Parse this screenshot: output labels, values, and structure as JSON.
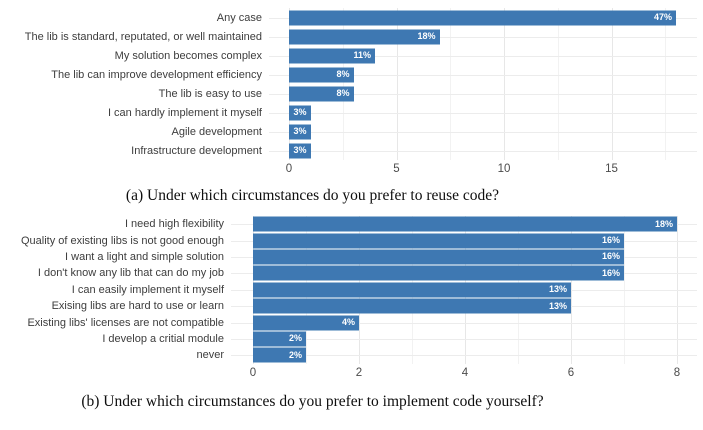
{
  "styles": {
    "bar_color": "#3e78b2",
    "grid_major_color": "#e7e7e7",
    "grid_minor_color": "#f2f2f2",
    "row_grid_color": "#ececec",
    "category_label_color": "#3d3d3d",
    "axis_tick_color": "#4b4b4b",
    "value_label_color": "#ffffff",
    "background": "#ffffff"
  },
  "chart_data": [
    {
      "id": "chartA",
      "type": "bar",
      "orientation": "horizontal",
      "caption": "(a) Under which circumstances do you prefer to reuse code?",
      "categories": [
        "Any case",
        "The lib is standard, reputated, or well maintained",
        "My solution becomes complex",
        "The lib can improve development efficiency",
        "The lib is easy to use",
        "I can hardly implement it myself",
        "Agile development",
        "Infrastructure development"
      ],
      "counts": [
        18,
        7,
        4,
        3,
        3,
        1,
        1,
        1
      ],
      "percent_labels": [
        "47%",
        "18%",
        "11%",
        "8%",
        "8%",
        "3%",
        "3%",
        "3%"
      ],
      "xlabel": "",
      "ylabel": "",
      "xlim": [
        0,
        18.9
      ],
      "xticks_major": [
        0,
        5,
        10,
        15
      ],
      "xticks_minor": [
        2.5,
        7.5,
        12.5,
        17.5
      ],
      "grid": true,
      "legend": false,
      "value_label_position": "inside-end"
    },
    {
      "id": "chartB",
      "type": "bar",
      "orientation": "horizontal",
      "caption": "(b) Under which circumstances do you prefer to implement code yourself?",
      "categories": [
        "I need high flexibility",
        "Quality of existing libs is not good enough",
        "I want a light and simple solution",
        "I don't know any lib that can do my job",
        "I can easily implement it myself",
        "Exising libs are hard to use or learn",
        "Existing libs' licenses are not compatible",
        "I develop a critial module",
        "never"
      ],
      "counts": [
        8,
        7,
        7,
        7,
        6,
        6,
        2,
        1,
        1
      ],
      "percent_labels": [
        "18%",
        "16%",
        "16%",
        "16%",
        "13%",
        "13%",
        "4%",
        "2%",
        "2%"
      ],
      "xlabel": "",
      "ylabel": "",
      "xlim": [
        0,
        8.4
      ],
      "xticks_major": [
        0,
        2,
        4,
        6,
        8
      ],
      "xticks_minor": [
        1,
        3,
        5,
        7
      ],
      "grid": true,
      "legend": false,
      "value_label_position": "inside-end"
    }
  ]
}
